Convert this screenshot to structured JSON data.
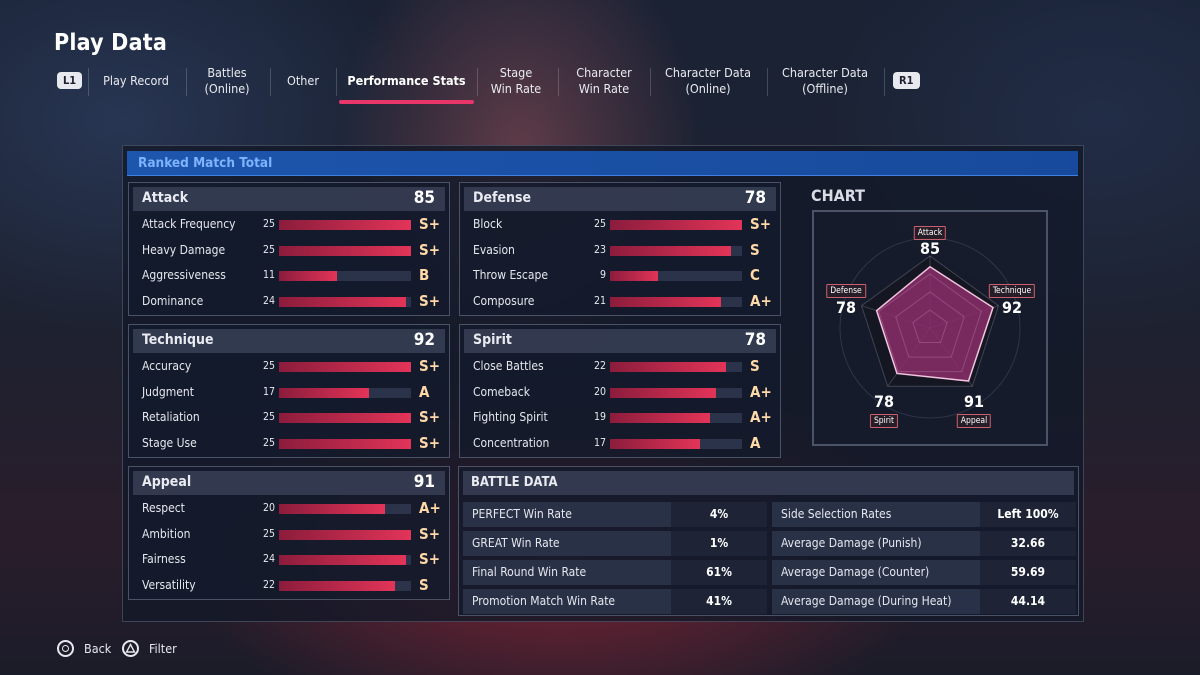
{
  "page_title": "Play Data",
  "nav": {
    "left_key": "L1",
    "right_key": "R1",
    "tabs": [
      {
        "label": "Play Record"
      },
      {
        "label": "Battles\n(Online)"
      },
      {
        "label": "Other"
      },
      {
        "label": "Performance Stats"
      },
      {
        "label": "Stage\nWin Rate"
      },
      {
        "label": "Character\nWin Rate"
      },
      {
        "label": "Character Data\n(Online)"
      },
      {
        "label": "Character Data\n(Offline)"
      }
    ],
    "active_tab": "Performance Stats"
  },
  "section_title": "Ranked Match Total",
  "stat_max": 25,
  "stats": {
    "attack": {
      "name": "Attack",
      "total": "85",
      "rows": [
        {
          "label": "Attack Frequency",
          "value": "25",
          "grade": "S+"
        },
        {
          "label": "Heavy Damage",
          "value": "25",
          "grade": "S+"
        },
        {
          "label": "Aggressiveness",
          "value": "11",
          "grade": "B"
        },
        {
          "label": "Dominance",
          "value": "24",
          "grade": "S+"
        }
      ]
    },
    "defense": {
      "name": "Defense",
      "total": "78",
      "rows": [
        {
          "label": "Block",
          "value": "25",
          "grade": "S+"
        },
        {
          "label": "Evasion",
          "value": "23",
          "grade": "S"
        },
        {
          "label": "Throw Escape",
          "value": "9",
          "grade": "C"
        },
        {
          "label": "Composure",
          "value": "21",
          "grade": "A+"
        }
      ]
    },
    "technique": {
      "name": "Technique",
      "total": "92",
      "rows": [
        {
          "label": "Accuracy",
          "value": "25",
          "grade": "S+"
        },
        {
          "label": "Judgment",
          "value": "17",
          "grade": "A"
        },
        {
          "label": "Retaliation",
          "value": "25",
          "grade": "S+"
        },
        {
          "label": "Stage Use",
          "value": "25",
          "grade": "S+"
        }
      ]
    },
    "spirit": {
      "name": "Spirit",
      "total": "78",
      "rows": [
        {
          "label": "Close Battles",
          "value": "22",
          "grade": "S"
        },
        {
          "label": "Comeback",
          "value": "20",
          "grade": "A+"
        },
        {
          "label": "Fighting Spirit",
          "value": "19",
          "grade": "A+"
        },
        {
          "label": "Concentration",
          "value": "17",
          "grade": "A"
        }
      ]
    },
    "appeal": {
      "name": "Appeal",
      "total": "91",
      "rows": [
        {
          "label": "Respect",
          "value": "20",
          "grade": "A+"
        },
        {
          "label": "Ambition",
          "value": "25",
          "grade": "S+"
        },
        {
          "label": "Fairness",
          "value": "24",
          "grade": "S+"
        },
        {
          "label": "Versatility",
          "value": "22",
          "grade": "S"
        }
      ]
    }
  },
  "chart": {
    "title": "CHART",
    "max": 100,
    "axes": [
      {
        "label": "Attack",
        "value": 85
      },
      {
        "label": "Technique",
        "value": 92
      },
      {
        "label": "Appeal",
        "value": 91
      },
      {
        "label": "Spirit",
        "value": 78
      },
      {
        "label": "Defense",
        "value": 78
      }
    ],
    "fill_color": "#8a2e6a",
    "stroke_color": "#f0c4dc"
  },
  "battle_data": {
    "title": "BATTLE DATA",
    "left": [
      {
        "label": "PERFECT Win Rate",
        "value": "4%"
      },
      {
        "label": "GREAT Win Rate",
        "value": "1%"
      },
      {
        "label": "Final Round Win Rate",
        "value": "61%"
      },
      {
        "label": "Promotion Match Win Rate",
        "value": "41%"
      }
    ],
    "right": [
      {
        "label": "Side Selection Rates",
        "value": "Left  100%"
      },
      {
        "label": "Average Damage (Punish)",
        "value": "32.66"
      },
      {
        "label": "Average Damage (Counter)",
        "value": "59.69"
      },
      {
        "label": "Average Damage (During Heat)",
        "value": "44.14"
      }
    ]
  },
  "footer": {
    "back": {
      "icon": "circle-button-icon",
      "label": "Back"
    },
    "filter": {
      "icon": "triangle-button-icon",
      "label": "Filter"
    }
  },
  "colors": {
    "accent": "#e8356a",
    "section_header": "#1d56ad",
    "bar": "#e23458",
    "grade": "#ffd9a8"
  }
}
